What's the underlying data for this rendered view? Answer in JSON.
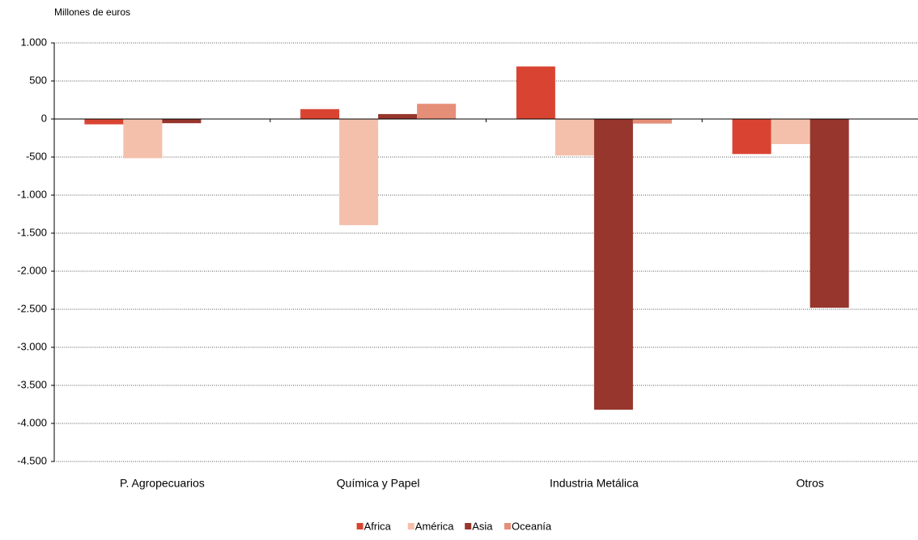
{
  "chart_data": {
    "type": "bar",
    "y_label": "Millones de euros",
    "categories": [
      "P. Agropecuarios",
      "Química y Papel",
      "Industria Metálica",
      "Otros"
    ],
    "series": [
      {
        "name": "Africa",
        "color": "#d94432",
        "values": [
          -70,
          130,
          690,
          -460
        ]
      },
      {
        "name": "América",
        "color": "#f4c0ac",
        "values": [
          -515,
          -1395,
          -480,
          -330
        ]
      },
      {
        "name": "Asia",
        "color": "#96362c",
        "values": [
          -55,
          65,
          -3820,
          -2480
        ]
      },
      {
        "name": "Oceanía",
        "color": "#e58f78",
        "values": [
          -5,
          200,
          -60,
          -5
        ]
      }
    ],
    "ylim": [
      -4500,
      1000
    ],
    "yticks": [
      {
        "value": 1000,
        "label": "1.000"
      },
      500,
      0,
      -500,
      {
        "value": -1000,
        "label": "-1.000"
      },
      {
        "value": -1500,
        "label": "-1.500"
      },
      {
        "value": -2000,
        "label": "-2.000"
      },
      {
        "value": -2500,
        "label": "-2.500"
      },
      {
        "value": -3000,
        "label": "-3.000"
      },
      {
        "value": -3500,
        "label": "-3.500"
      },
      {
        "value": -4000,
        "label": "-4.000"
      },
      {
        "value": -4500,
        "label": "-4.500"
      }
    ],
    "grid": true
  }
}
